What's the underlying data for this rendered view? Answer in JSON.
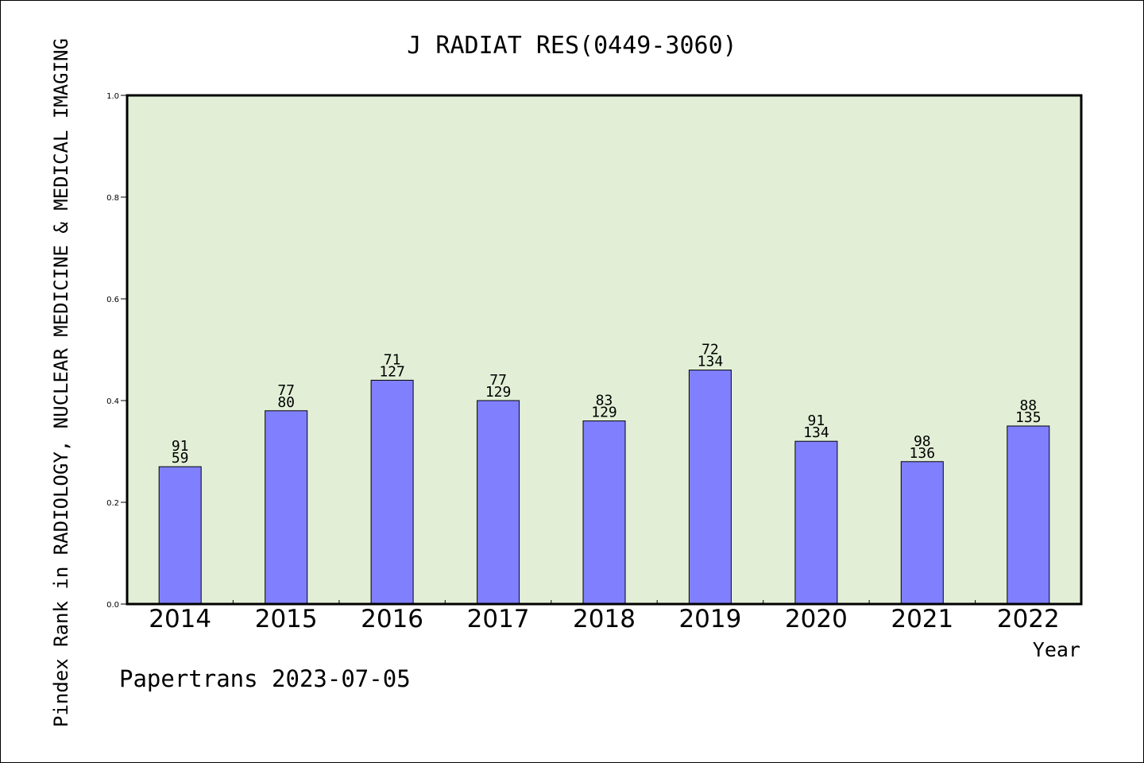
{
  "chart_data": {
    "type": "bar",
    "title": "J RADIAT RES(0449-3060)",
    "xlabel": "Year",
    "ylabel": "Pindex Rank in RADIOLOGY, NUCLEAR MEDICINE & MEDICAL IMAGING",
    "categories": [
      "2014",
      "2015",
      "2016",
      "2017",
      "2018",
      "2019",
      "2020",
      "2021",
      "2022"
    ],
    "values": [
      0.27,
      0.38,
      0.44,
      0.4,
      0.36,
      0.46,
      0.32,
      0.28,
      0.35
    ],
    "labels_top": [
      "91",
      "77",
      "71",
      "77",
      "83",
      "72",
      "91",
      "98",
      "88"
    ],
    "labels_bottom": [
      "59",
      "80",
      "127",
      "129",
      "129",
      "134",
      "134",
      "136",
      "135"
    ],
    "ylim": [
      0,
      1.0
    ],
    "yticks": [
      "0.0",
      "0.2",
      "0.4",
      "0.6",
      "0.8",
      "1.0"
    ],
    "grid": false,
    "colors": {
      "bar": "#8080ff",
      "plot_bg": "#e2efd6",
      "axis": "#000000"
    }
  },
  "footer": {
    "credit": "Papertrans 2023-07-05"
  }
}
